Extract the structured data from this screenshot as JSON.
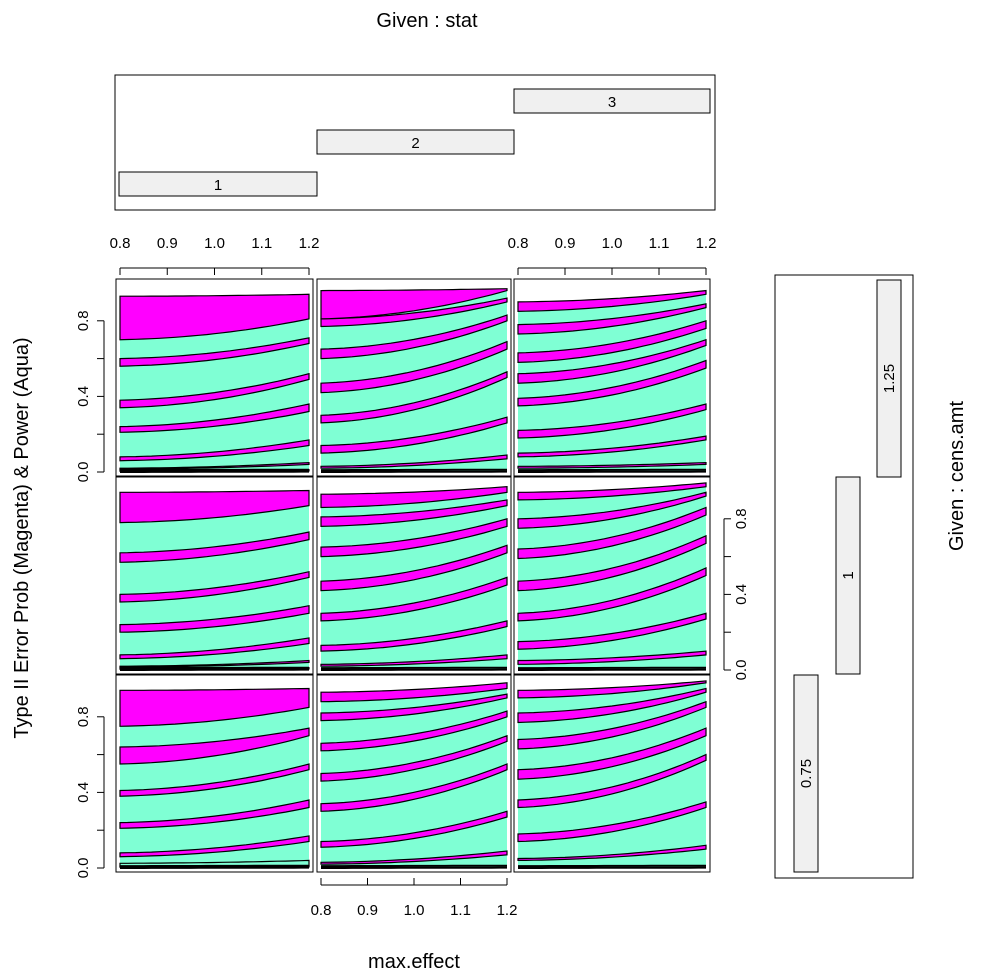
{
  "titles": {
    "top": "Given : stat",
    "right": "Given : cens.amt",
    "xlabel": "max.effect",
    "ylabel": "Type II Error Prob (Magenta) & Power (Aqua)"
  },
  "stat_bars": [
    "1",
    "2",
    "3"
  ],
  "cens_bars": [
    "0.75",
    "1",
    "1.25"
  ],
  "x_ticks": [
    "0.8",
    "0.9",
    "1.0",
    "1.1",
    "1.2"
  ],
  "y_ticks": [
    "0.0",
    "0.4",
    "0.8"
  ],
  "colors": {
    "aqua": "#7fffd4",
    "magenta": "#ff00ff",
    "stat_bar_fill": "#f0f0f0"
  },
  "chart_data": {
    "type": "area",
    "description_axes": {
      "x_range": [
        0.8,
        1.2
      ],
      "y_range": [
        0,
        1
      ]
    },
    "stat_levels": [
      "1",
      "2",
      "3"
    ],
    "cens_levels": [
      "0.75",
      "1",
      "1.25"
    ],
    "panels": [
      {
        "stat": "1",
        "cens": "0.75",
        "bands": [
          {
            "lo": [
              0.005,
              0.006
            ],
            "hi": [
              0.01,
              0.012
            ],
            "color": "magenta"
          },
          {
            "lo": [
              0.01,
              0.012
            ],
            "hi": [
              0.025,
              0.04
            ],
            "color": "aqua"
          },
          {
            "lo": [
              0.06,
              0.14
            ],
            "hi": [
              0.08,
              0.17
            ],
            "color": "magenta"
          },
          {
            "lo": [
              0.21,
              0.32
            ],
            "hi": [
              0.24,
              0.36
            ],
            "color": "magenta"
          },
          {
            "lo": [
              0.38,
              0.52
            ],
            "hi": [
              0.41,
              0.55
            ],
            "color": "magenta"
          },
          {
            "lo": [
              0.55,
              0.7
            ],
            "hi": [
              0.64,
              0.74
            ],
            "color": "magenta"
          },
          {
            "lo": [
              0.75,
              0.85
            ],
            "hi": [
              0.94,
              0.95
            ],
            "color": "magenta"
          }
        ]
      },
      {
        "stat": "2",
        "cens": "0.75",
        "bands": [
          {
            "lo": [
              0.02,
              0.07
            ],
            "hi": [
              0.03,
              0.09
            ],
            "color": "magenta"
          },
          {
            "lo": [
              0.11,
              0.27
            ],
            "hi": [
              0.14,
              0.3
            ],
            "color": "magenta"
          },
          {
            "lo": [
              0.3,
              0.52
            ],
            "hi": [
              0.34,
              0.55
            ],
            "color": "magenta"
          },
          {
            "lo": [
              0.46,
              0.67
            ],
            "hi": [
              0.5,
              0.7
            ],
            "color": "magenta"
          },
          {
            "lo": [
              0.62,
              0.8
            ],
            "hi": [
              0.66,
              0.83
            ],
            "color": "magenta"
          },
          {
            "lo": [
              0.78,
              0.9
            ],
            "hi": [
              0.82,
              0.92
            ],
            "color": "magenta"
          },
          {
            "lo": [
              0.88,
              0.95
            ],
            "hi": [
              0.93,
              0.98
            ],
            "color": "magenta"
          }
        ]
      },
      {
        "stat": "3",
        "cens": "0.75",
        "bands": [
          {
            "lo": [
              0.04,
              0.1
            ],
            "hi": [
              0.05,
              0.12
            ],
            "color": "magenta"
          },
          {
            "lo": [
              0.14,
              0.32
            ],
            "hi": [
              0.18,
              0.35
            ],
            "color": "magenta"
          },
          {
            "lo": [
              0.32,
              0.57
            ],
            "hi": [
              0.36,
              0.6
            ],
            "color": "magenta"
          },
          {
            "lo": [
              0.47,
              0.7
            ],
            "hi": [
              0.52,
              0.74
            ],
            "color": "magenta"
          },
          {
            "lo": [
              0.63,
              0.85
            ],
            "hi": [
              0.68,
              0.88
            ],
            "color": "magenta"
          },
          {
            "lo": [
              0.77,
              0.93
            ],
            "hi": [
              0.82,
              0.95
            ],
            "color": "magenta"
          },
          {
            "lo": [
              0.9,
              0.98
            ],
            "hi": [
              0.94,
              0.99
            ],
            "color": "magenta"
          }
        ]
      },
      {
        "stat": "1",
        "cens": "1",
        "bands": [
          {
            "lo": [
              0.005,
              0.006
            ],
            "hi": [
              0.01,
              0.012
            ],
            "color": "magenta"
          },
          {
            "lo": [
              0.015,
              0.04
            ],
            "hi": [
              0.02,
              0.05
            ],
            "color": "magenta"
          },
          {
            "lo": [
              0.06,
              0.14
            ],
            "hi": [
              0.08,
              0.17
            ],
            "color": "magenta"
          },
          {
            "lo": [
              0.2,
              0.3
            ],
            "hi": [
              0.24,
              0.34
            ],
            "color": "magenta"
          },
          {
            "lo": [
              0.36,
              0.49
            ],
            "hi": [
              0.4,
              0.52
            ],
            "color": "magenta"
          },
          {
            "lo": [
              0.57,
              0.69
            ],
            "hi": [
              0.62,
              0.73
            ],
            "color": "magenta"
          },
          {
            "lo": [
              0.78,
              0.87
            ],
            "hi": [
              0.94,
              0.95
            ],
            "color": "magenta"
          }
        ]
      },
      {
        "stat": "2",
        "cens": "1",
        "bands": [
          {
            "lo": [
              0.02,
              0.06
            ],
            "hi": [
              0.03,
              0.08
            ],
            "color": "magenta"
          },
          {
            "lo": [
              0.1,
              0.23
            ],
            "hi": [
              0.13,
              0.26
            ],
            "color": "magenta"
          },
          {
            "lo": [
              0.26,
              0.45
            ],
            "hi": [
              0.3,
              0.49
            ],
            "color": "magenta"
          },
          {
            "lo": [
              0.42,
              0.62
            ],
            "hi": [
              0.47,
              0.66
            ],
            "color": "magenta"
          },
          {
            "lo": [
              0.6,
              0.76
            ],
            "hi": [
              0.65,
              0.8
            ],
            "color": "magenta"
          },
          {
            "lo": [
              0.76,
              0.87
            ],
            "hi": [
              0.81,
              0.9
            ],
            "color": "magenta"
          },
          {
            "lo": [
              0.86,
              0.94
            ],
            "hi": [
              0.93,
              0.97
            ],
            "color": "magenta"
          }
        ]
      },
      {
        "stat": "3",
        "cens": "1",
        "bands": [
          {
            "lo": [
              0.03,
              0.08
            ],
            "hi": [
              0.05,
              0.1
            ],
            "color": "magenta"
          },
          {
            "lo": [
              0.11,
              0.27
            ],
            "hi": [
              0.15,
              0.3
            ],
            "color": "magenta"
          },
          {
            "lo": [
              0.26,
              0.5
            ],
            "hi": [
              0.3,
              0.54
            ],
            "color": "magenta"
          },
          {
            "lo": [
              0.42,
              0.67
            ],
            "hi": [
              0.47,
              0.71
            ],
            "color": "magenta"
          },
          {
            "lo": [
              0.59,
              0.82
            ],
            "hi": [
              0.64,
              0.86
            ],
            "color": "magenta"
          },
          {
            "lo": [
              0.75,
              0.92
            ],
            "hi": [
              0.8,
              0.94
            ],
            "color": "magenta"
          },
          {
            "lo": [
              0.9,
              0.97
            ],
            "hi": [
              0.94,
              0.99
            ],
            "color": "magenta"
          }
        ]
      },
      {
        "stat": "1",
        "cens": "1.25",
        "bands": [
          {
            "lo": [
              0.005,
              0.006
            ],
            "hi": [
              0.01,
              0.012
            ],
            "color": "magenta"
          },
          {
            "lo": [
              0.015,
              0.04
            ],
            "hi": [
              0.02,
              0.05
            ],
            "color": "magenta"
          },
          {
            "lo": [
              0.06,
              0.14
            ],
            "hi": [
              0.08,
              0.17
            ],
            "color": "magenta"
          },
          {
            "lo": [
              0.21,
              0.32
            ],
            "hi": [
              0.24,
              0.36
            ],
            "color": "magenta"
          },
          {
            "lo": [
              0.34,
              0.49
            ],
            "hi": [
              0.38,
              0.52
            ],
            "color": "magenta"
          },
          {
            "lo": [
              0.56,
              0.68
            ],
            "hi": [
              0.6,
              0.71
            ],
            "color": "magenta"
          },
          {
            "lo": [
              0.7,
              0.81
            ],
            "hi": [
              0.93,
              0.94
            ],
            "color": "magenta"
          }
        ]
      },
      {
        "stat": "2",
        "cens": "1.25",
        "bands": [
          {
            "lo": [
              0.02,
              0.07
            ],
            "hi": [
              0.03,
              0.09
            ],
            "color": "magenta"
          },
          {
            "lo": [
              0.1,
              0.26
            ],
            "hi": [
              0.14,
              0.29
            ],
            "color": "magenta"
          },
          {
            "lo": [
              0.26,
              0.5
            ],
            "hi": [
              0.3,
              0.53
            ],
            "color": "magenta"
          },
          {
            "lo": [
              0.42,
              0.65
            ],
            "hi": [
              0.47,
              0.69
            ],
            "color": "magenta"
          },
          {
            "lo": [
              0.6,
              0.8
            ],
            "hi": [
              0.65,
              0.83
            ],
            "color": "magenta"
          },
          {
            "lo": [
              0.77,
              0.9
            ],
            "hi": [
              0.81,
              0.92
            ],
            "color": "magenta"
          },
          {
            "lo": [
              0.81,
              0.96
            ],
            "hi": [
              0.96,
              0.97
            ],
            "color": "magenta"
          }
        ]
      },
      {
        "stat": "3",
        "cens": "1.25",
        "bands": [
          {
            "lo": [
              0.02,
              0.04
            ],
            "hi": [
              0.03,
              0.05
            ],
            "color": "magenta"
          },
          {
            "lo": [
              0.08,
              0.17
            ],
            "hi": [
              0.1,
              0.19
            ],
            "color": "magenta"
          },
          {
            "lo": [
              0.18,
              0.33
            ],
            "hi": [
              0.22,
              0.36
            ],
            "color": "magenta"
          },
          {
            "lo": [
              0.35,
              0.55
            ],
            "hi": [
              0.39,
              0.59
            ],
            "color": "magenta"
          },
          {
            "lo": [
              0.47,
              0.67
            ],
            "hi": [
              0.52,
              0.7
            ],
            "color": "magenta"
          },
          {
            "lo": [
              0.58,
              0.76
            ],
            "hi": [
              0.63,
              0.8
            ],
            "color": "magenta"
          },
          {
            "lo": [
              0.73,
              0.87
            ],
            "hi": [
              0.78,
              0.89
            ],
            "color": "magenta"
          },
          {
            "lo": [
              0.85,
              0.94
            ],
            "hi": [
              0.9,
              0.96
            ],
            "color": "magenta"
          }
        ]
      }
    ]
  }
}
